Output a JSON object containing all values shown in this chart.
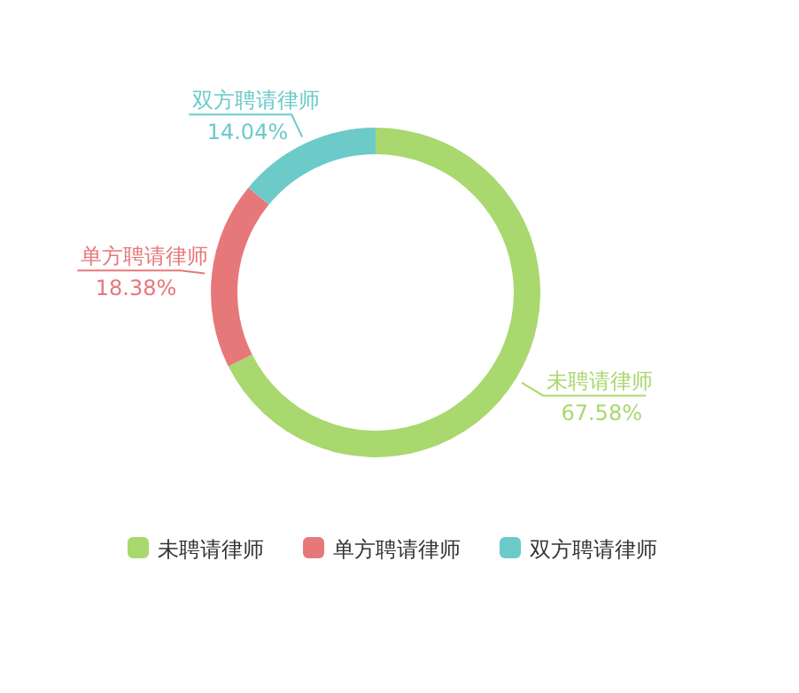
{
  "chart_data": {
    "type": "donut",
    "categories": [
      "未聘请律师",
      "单方聘请律师",
      "双方聘请律师"
    ],
    "values": [
      67.58,
      18.38,
      14.04
    ],
    "colors": [
      "#a9d86e",
      "#e7787a",
      "#6ccac9"
    ],
    "value_labels": [
      "67.58%",
      "18.38%",
      "14.04%"
    ],
    "legend": "bottom"
  }
}
